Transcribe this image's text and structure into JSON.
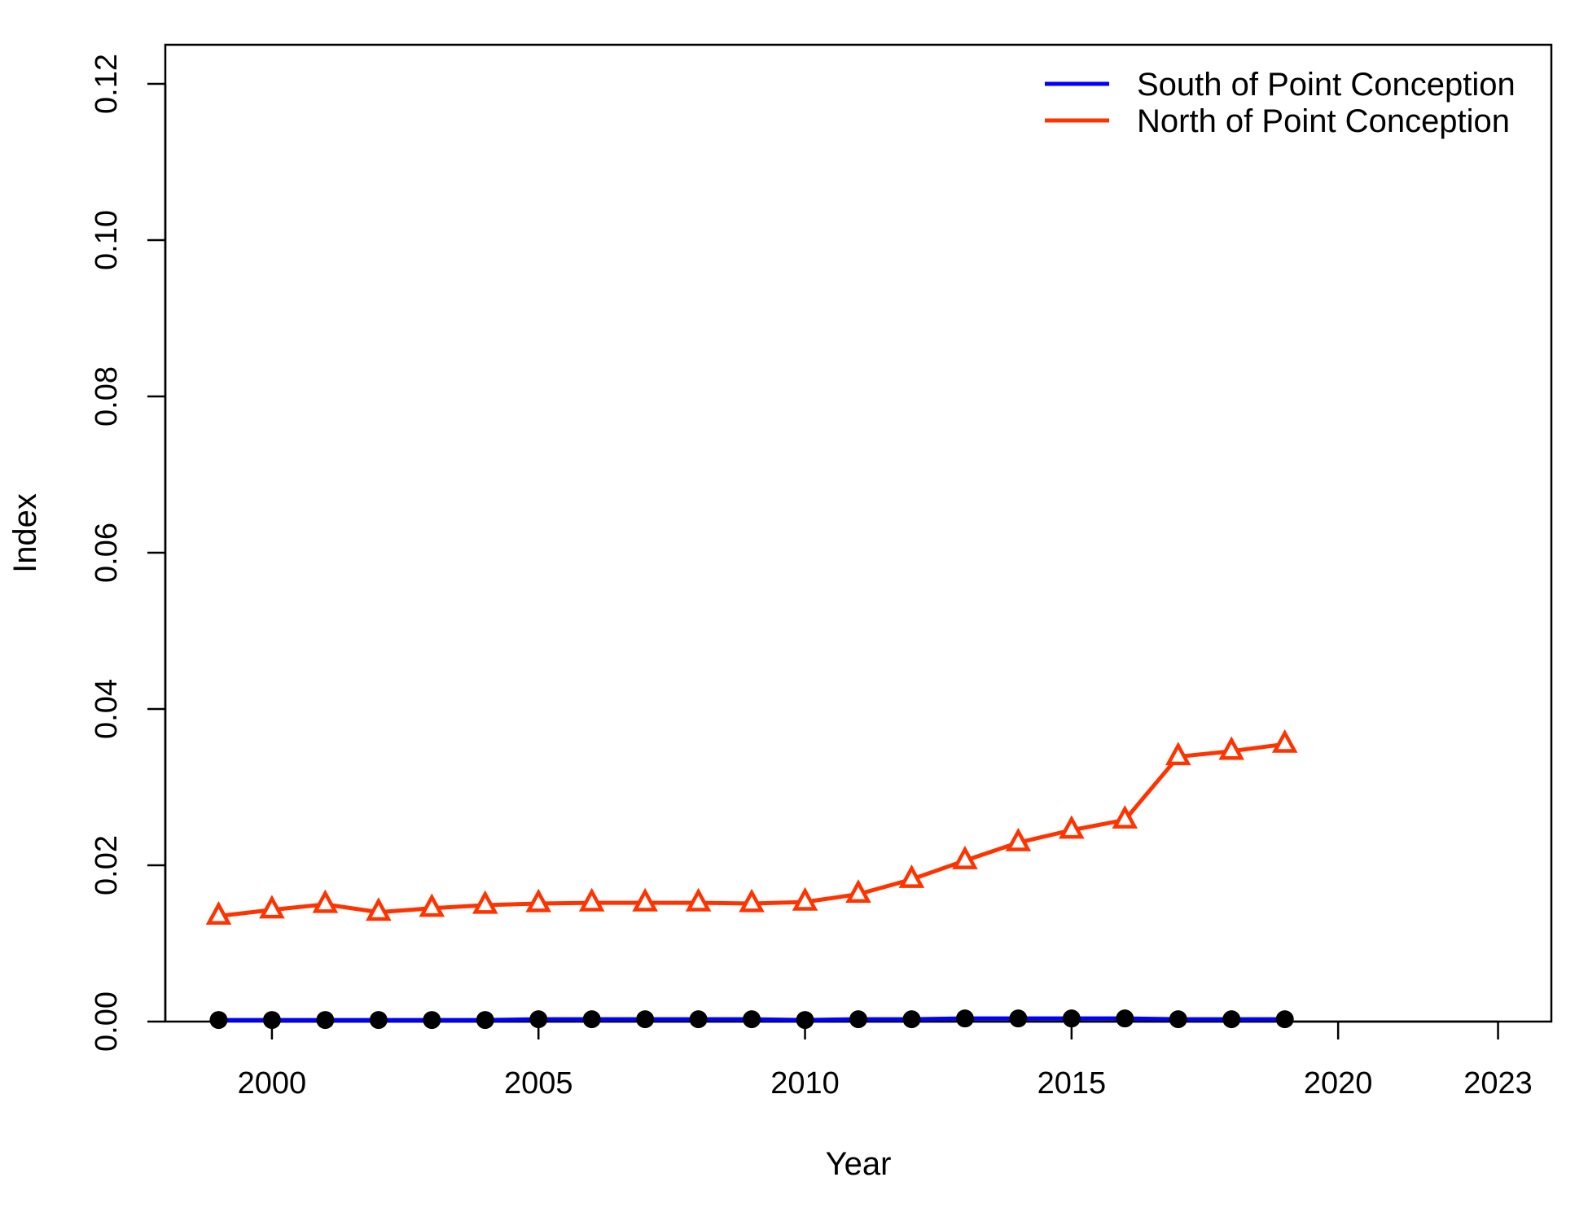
{
  "chart_data": {
    "type": "line",
    "xlabel": "Year",
    "ylabel": "Index",
    "xlim": [
      1998,
      2024
    ],
    "ylim": [
      0,
      0.125
    ],
    "x_ticks": [
      2000,
      2005,
      2010,
      2015,
      2020,
      2023
    ],
    "y_ticks": [
      0.0,
      0.02,
      0.04,
      0.06,
      0.08,
      0.1,
      0.12
    ],
    "y_tick_labels": [
      "0.00",
      "0.02",
      "0.04",
      "0.06",
      "0.08",
      "0.10",
      "0.12"
    ],
    "legend_position": "top-right",
    "grid": false,
    "x": [
      1999,
      2000,
      2001,
      2002,
      2003,
      2004,
      2005,
      2006,
      2007,
      2008,
      2009,
      2010,
      2011,
      2012,
      2013,
      2014,
      2015,
      2016,
      2017,
      2018,
      2019
    ],
    "series": [
      {
        "name": "South of Point Conception",
        "color": "#0000ff",
        "marker": "filled-circle",
        "marker_color": "#000000",
        "values": [
          0.0002,
          0.0002,
          0.0002,
          0.0002,
          0.0002,
          0.0002,
          0.0003,
          0.0003,
          0.0003,
          0.0003,
          0.0003,
          0.0002,
          0.0003,
          0.0003,
          0.0004,
          0.0004,
          0.0004,
          0.0004,
          0.0003,
          0.0003,
          0.0003
        ]
      },
      {
        "name": "North of Point Conception",
        "color": "#ff3300",
        "marker": "open-triangle",
        "marker_color": "#ff3300",
        "values": [
          0.0135,
          0.0143,
          0.015,
          0.014,
          0.0145,
          0.0149,
          0.0151,
          0.0152,
          0.0152,
          0.0152,
          0.0151,
          0.0153,
          0.0163,
          0.0182,
          0.0206,
          0.0229,
          0.0245,
          0.0258,
          0.0339,
          0.0346,
          0.0355
        ]
      }
    ]
  }
}
